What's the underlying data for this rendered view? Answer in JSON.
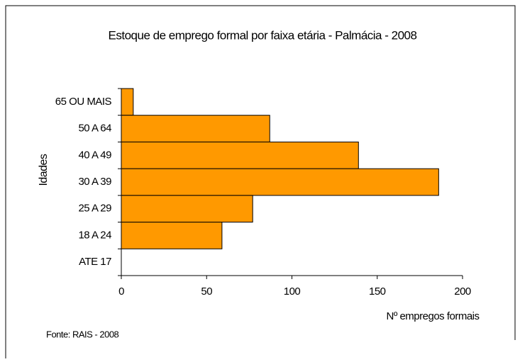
{
  "chart_data": {
    "type": "hbar",
    "title": "Estoque de emprego formal por faixa etária - Palmácia - 2008",
    "categories": [
      "65 OU MAIS",
      "50 A 64",
      "40 A 49",
      "30 A 39",
      "25 A 29",
      "18 A 24",
      "ATE 17"
    ],
    "values": [
      7,
      87,
      139,
      186,
      77,
      59,
      0
    ],
    "color": "#ff9900",
    "xlim": [
      0,
      200
    ],
    "xticks": [
      0,
      50,
      100,
      150,
      200
    ],
    "xlabel": "Nº empregos formais",
    "ylabel": "Idades",
    "source": "Fonte: RAIS - 2008"
  }
}
